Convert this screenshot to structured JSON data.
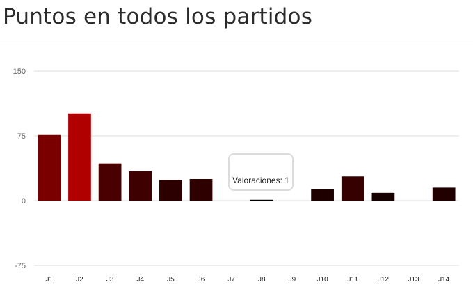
{
  "page": {
    "title": "Puntos en todos los partidos"
  },
  "tooltip": {
    "text": "Valoraciones: 1"
  },
  "chart_data": {
    "type": "bar",
    "title": "Puntos en todos los partidos",
    "xlabel": "",
    "ylabel": "",
    "ylim": [
      -75,
      150
    ],
    "yticks": [
      150,
      75,
      0,
      -75
    ],
    "grid": true,
    "categories": [
      "J1",
      "J2",
      "J3",
      "J4",
      "J5",
      "J6",
      "J7",
      "J8",
      "J9",
      "J10",
      "J11",
      "J12",
      "J13",
      "J14"
    ],
    "values": [
      76,
      101,
      43,
      34,
      24,
      25,
      0,
      1,
      0,
      13,
      28,
      9,
      0,
      15
    ],
    "colors": [
      "#7a0000",
      "#b00000",
      "#4a0000",
      "#3e0000",
      "#2d0000",
      "#2f0000",
      "#000000",
      "#000000",
      "#000000",
      "#1f0000",
      "#360000",
      "#160000",
      "#000000",
      "#220000"
    ]
  }
}
